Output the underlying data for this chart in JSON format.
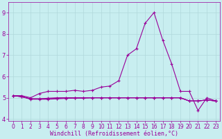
{
  "title": "",
  "xlabel": "Windchill (Refroidissement éolien,°C)",
  "ylabel": "",
  "background_color": "#c8eef0",
  "grid_color": "#b0d8db",
  "line_color": "#990099",
  "xlim": [
    -0.5,
    23.5
  ],
  "ylim": [
    3.9,
    9.5
  ],
  "yticks": [
    4,
    5,
    6,
    7,
    8,
    9
  ],
  "xticks": [
    0,
    1,
    2,
    3,
    4,
    5,
    6,
    7,
    8,
    9,
    10,
    11,
    12,
    13,
    14,
    15,
    16,
    17,
    18,
    19,
    20,
    21,
    22,
    23
  ],
  "series": [
    [
      5.1,
      5.1,
      5.0,
      5.2,
      5.3,
      5.3,
      5.3,
      5.35,
      5.3,
      5.35,
      5.5,
      5.55,
      5.8,
      7.0,
      7.3,
      8.5,
      9.0,
      7.7,
      6.6,
      5.3,
      5.3,
      4.4,
      5.0,
      4.85
    ],
    [
      5.1,
      5.05,
      4.95,
      4.95,
      4.98,
      5.0,
      5.0,
      5.0,
      5.0,
      5.0,
      5.0,
      5.0,
      5.0,
      5.0,
      5.0,
      5.0,
      5.0,
      5.0,
      5.0,
      5.0,
      4.85,
      4.85,
      4.9,
      4.85
    ],
    [
      5.1,
      5.05,
      4.95,
      4.95,
      4.95,
      4.97,
      5.0,
      5.0,
      5.0,
      5.0,
      5.0,
      5.0,
      5.0,
      5.0,
      5.0,
      5.0,
      5.0,
      5.0,
      5.0,
      5.0,
      4.85,
      4.85,
      4.9,
      4.85
    ],
    [
      5.1,
      5.05,
      4.93,
      4.93,
      4.93,
      4.95,
      4.97,
      4.98,
      4.98,
      5.0,
      5.0,
      5.0,
      5.0,
      5.0,
      5.0,
      5.0,
      5.0,
      5.0,
      5.0,
      5.0,
      4.85,
      4.85,
      4.9,
      4.85
    ]
  ],
  "marker": "+",
  "markersize": 3,
  "linewidth": 0.8,
  "tick_fontsize": 5.5,
  "xlabel_fontsize": 6
}
